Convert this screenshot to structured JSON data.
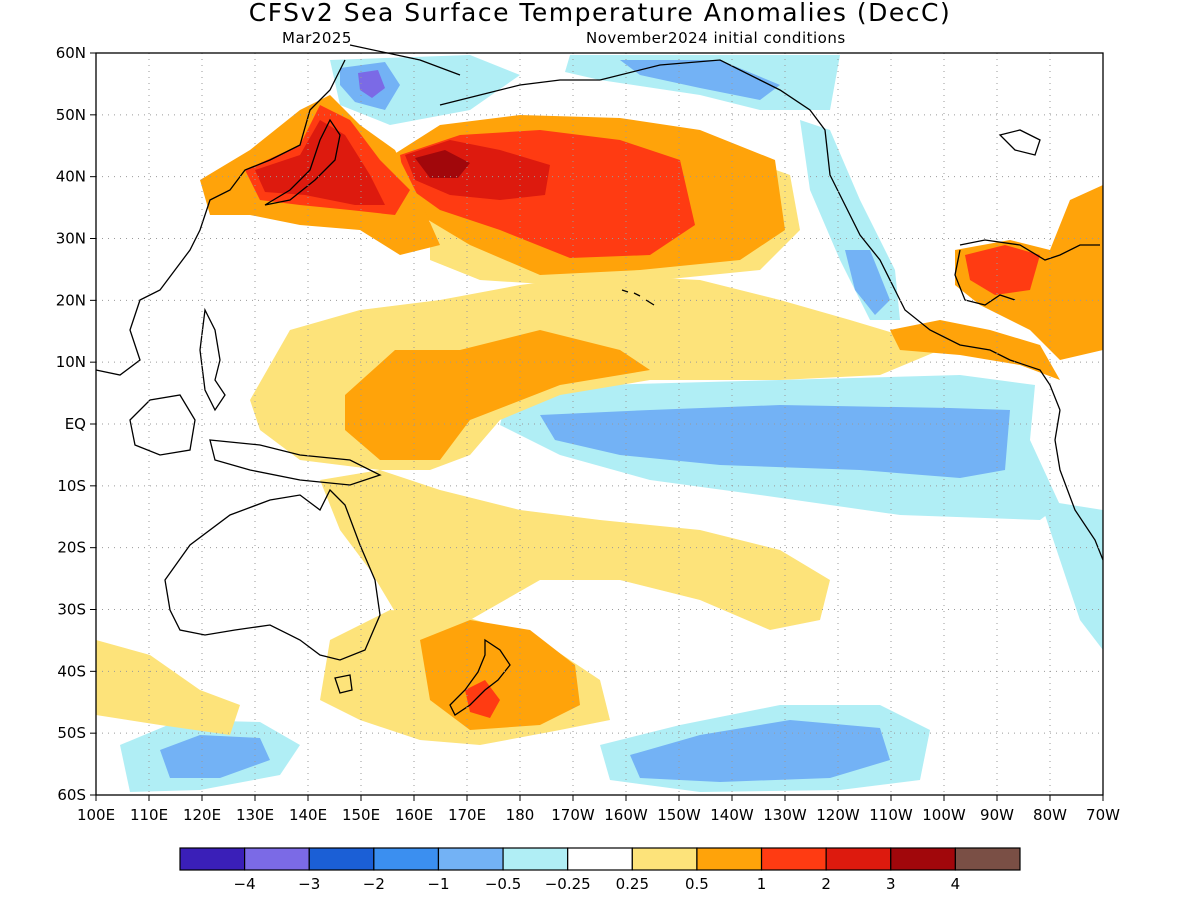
{
  "title": "CFSv2 Sea Surface Temperature Anomalies (DecC)",
  "subtitle_left": "Mar2025",
  "subtitle_right": "November2024 initial conditions",
  "lat_labels": [
    "60N",
    "50N",
    "40N",
    "30N",
    "20N",
    "10N",
    "EQ",
    "10S",
    "20S",
    "30S",
    "40S",
    "50S",
    "60S"
  ],
  "lon_labels": [
    "100E",
    "110E",
    "120E",
    "130E",
    "140E",
    "150E",
    "160E",
    "170E",
    "180",
    "170W",
    "160W",
    "150W",
    "140W",
    "130W",
    "120W",
    "110W",
    "100W",
    "90W",
    "80W",
    "70W"
  ],
  "legend": {
    "colors": [
      "#3a1fb8",
      "#7b6ae6",
      "#1b5fd6",
      "#3b8ff0",
      "#73b2f5",
      "#b0eef5",
      "#ffffff",
      "#fde37a",
      "#ffa30a",
      "#ff3b12",
      "#dd1a0e",
      "#a1070b",
      "#7a4f45"
    ],
    "labels": [
      "−4",
      "−3",
      "−2",
      "−1",
      "−0.5",
      "−0.25",
      "0.25",
      "0.5",
      "1",
      "2",
      "3",
      "4"
    ]
  }
}
